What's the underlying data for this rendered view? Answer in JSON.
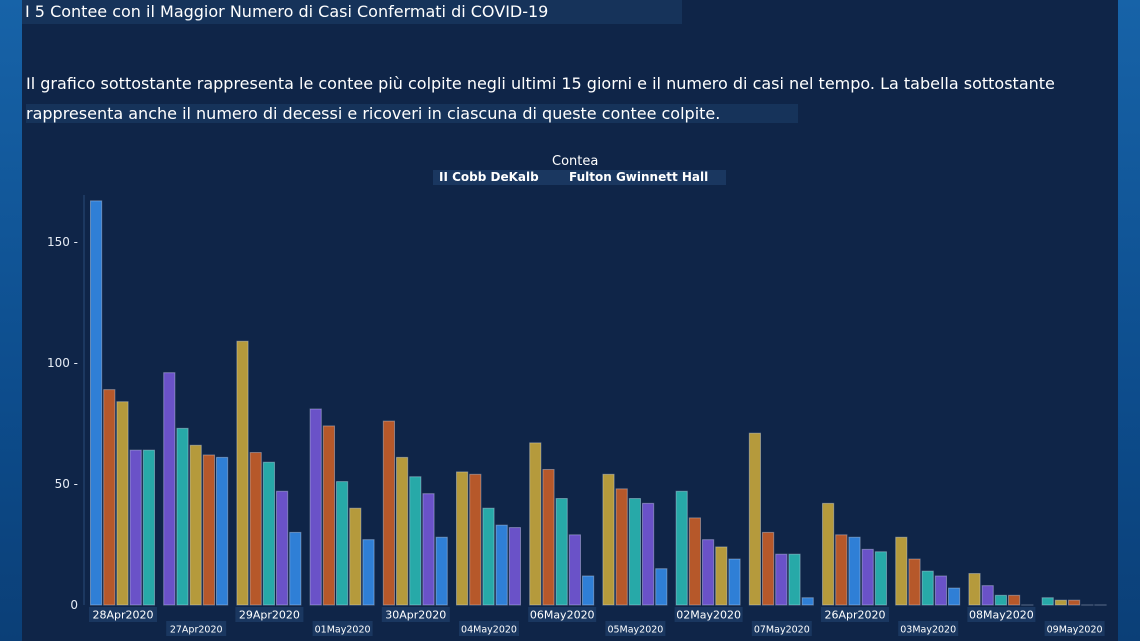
{
  "page": {
    "title": "I 5 Contee con il Maggior Numero di Casi Confermati di COVID-19",
    "description_line1": "Il grafico sottostante rappresenta le contee più colpite negli ultimi 15 giorni e il numero di casi nel tempo. La tabella sottostante",
    "description_line2": "rappresenta anche il numero di decessi e ricoveri in ciascuna di queste contee colpite."
  },
  "legend": {
    "title": "Contea",
    "group_a": "II Cobb DeKalb",
    "group_b": "Fulton Gwinnett Hall"
  },
  "colors": {
    "c1": "#2f7fd6",
    "c2": "#b6582a",
    "c3": "#b59a3c",
    "c4": "#6a52c8",
    "c5": "#27a9a8"
  },
  "chart_data": {
    "type": "bar",
    "ylim": [
      0,
      170
    ],
    "yticks": [
      0,
      50,
      100,
      150
    ],
    "categories": [
      "28Apr2020",
      "27Apr2020",
      "29Apr2020",
      "01May2020",
      "30Apr2020",
      "04May2020",
      "06May2020",
      "05May2020",
      "02May2020",
      "07May2020",
      "26Apr2020",
      "03May2020",
      "08May2020",
      "09May2020"
    ],
    "groups": [
      {
        "label": "28Apr2020",
        "values": [
          167,
          89,
          84,
          64,
          64
        ],
        "colors": [
          "c1",
          "c2",
          "c3",
          "c4",
          "c5"
        ]
      },
      {
        "label": "27Apr2020",
        "values": [
          96,
          73,
          66,
          62,
          61
        ],
        "colors": [
          "c4",
          "c5",
          "c3",
          "c2",
          "c1"
        ]
      },
      {
        "label": "29Apr2020",
        "values": [
          109,
          63,
          59,
          47,
          30
        ],
        "colors": [
          "c3",
          "c2",
          "c5",
          "c4",
          "c1"
        ]
      },
      {
        "label": "01May2020",
        "values": [
          81,
          74,
          51,
          40,
          27
        ],
        "colors": [
          "c4",
          "c2",
          "c5",
          "c3",
          "c1"
        ]
      },
      {
        "label": "30Apr2020",
        "values": [
          76,
          61,
          53,
          46,
          28
        ],
        "colors": [
          "c2",
          "c3",
          "c5",
          "c4",
          "c1"
        ]
      },
      {
        "label": "04May2020",
        "values": [
          55,
          54,
          40,
          33,
          32
        ],
        "colors": [
          "c3",
          "c2",
          "c5",
          "c1",
          "c4"
        ]
      },
      {
        "label": "06May2020",
        "values": [
          67,
          56,
          44,
          29,
          12
        ],
        "colors": [
          "c3",
          "c2",
          "c5",
          "c4",
          "c1"
        ]
      },
      {
        "label": "05May2020",
        "values": [
          54,
          48,
          44,
          42,
          15
        ],
        "colors": [
          "c3",
          "c2",
          "c5",
          "c4",
          "c1"
        ]
      },
      {
        "label": "02May2020",
        "values": [
          47,
          36,
          27,
          24,
          19
        ],
        "colors": [
          "c5",
          "c2",
          "c4",
          "c3",
          "c1"
        ]
      },
      {
        "label": "07May2020",
        "values": [
          71,
          30,
          21,
          21,
          3
        ],
        "colors": [
          "c3",
          "c2",
          "c4",
          "c5",
          "c1"
        ]
      },
      {
        "label": "26Apr2020",
        "values": [
          42,
          29,
          28,
          23,
          22
        ],
        "colors": [
          "c3",
          "c2",
          "c1",
          "c4",
          "c5"
        ]
      },
      {
        "label": "03May2020",
        "values": [
          28,
          19,
          14,
          12,
          7
        ],
        "colors": [
          "c3",
          "c2",
          "c5",
          "c4",
          "c1"
        ]
      },
      {
        "label": "08May2020",
        "values": [
          13,
          8,
          4,
          4,
          0
        ],
        "colors": [
          "c3",
          "c4",
          "c5",
          "c2",
          "c1"
        ]
      },
      {
        "label": "09May2020",
        "values": [
          3,
          2,
          2,
          0,
          0
        ],
        "colors": [
          "c5",
          "c3",
          "c2",
          "c4",
          "c1"
        ]
      }
    ]
  }
}
